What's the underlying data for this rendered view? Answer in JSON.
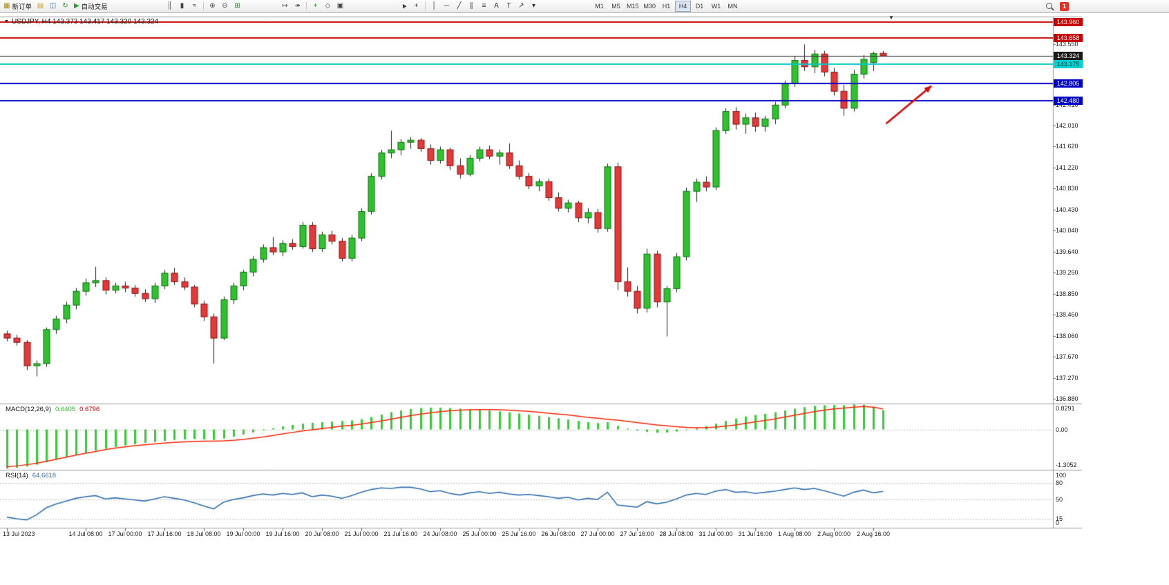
{
  "toolbar": {
    "timeframes": [
      "M1",
      "M5",
      "M15",
      "M30",
      "H1",
      "H4",
      "D1",
      "W1",
      "MN"
    ],
    "active_timeframe": "H4",
    "groups": {
      "orders": [
        {
          "name": "new-order-button",
          "icon": "new-order-icon",
          "glyph": "▦",
          "color": "#b08a00",
          "label": "新订单"
        },
        {
          "name": "chart-window-button",
          "icon": "chart-window-icon",
          "glyph": "▤",
          "color": "#caa61a"
        },
        {
          "name": "profiles-button",
          "icon": "profiles-icon",
          "glyph": "◫",
          "color": "#3a6ea5"
        },
        {
          "name": "refresh-button",
          "icon": "refresh-icon",
          "glyph": "↻",
          "color": "#2e9b2e"
        },
        {
          "name": "auto-trading-button",
          "icon": "auto-trading-play-icon",
          "glyph": "▶",
          "color": "#23a323",
          "label": "自动交易"
        }
      ],
      "chart_type": [
        {
          "name": "bar-chart-button",
          "icon": "bar-chart-icon",
          "glyph": "║",
          "color": "#444"
        },
        {
          "name": "candle-chart-button",
          "icon": "candlestick-icon",
          "glyph": "▮",
          "color": "#444"
        },
        {
          "name": "line-chart-button",
          "icon": "line-chart-icon",
          "glyph": "≈",
          "color": "#444"
        },
        {
          "type": "sep"
        },
        {
          "name": "zoom-in-button",
          "icon": "zoom-in-icon",
          "glyph": "⊕",
          "color": "#444"
        },
        {
          "name": "zoom-out-button",
          "icon": "zoom-out-icon",
          "glyph": "⊖",
          "color": "#444"
        },
        {
          "name": "tile-windows-button",
          "icon": "tile-windows-icon",
          "glyph": "⊞",
          "color": "#2e7d32"
        }
      ],
      "layout": [
        {
          "name": "auto-scroll-button",
          "icon": "auto-scroll-icon",
          "glyph": "↦",
          "color": "#444"
        },
        {
          "name": "chart-shift-button",
          "icon": "chart-shift-icon",
          "glyph": "↠",
          "color": "#444"
        },
        {
          "type": "sep"
        },
        {
          "name": "indicators-button",
          "icon": "add-indicator-icon",
          "glyph": "+",
          "color": "#1e8f1e"
        },
        {
          "name": "periods-button",
          "icon": "periods-icon",
          "glyph": "◇",
          "color": "#444"
        },
        {
          "name": "templates-button",
          "icon": "template-icon",
          "glyph": "▣",
          "color": "#444"
        }
      ],
      "tools": [
        {
          "name": "cursor-button",
          "icon": "cursor-icon",
          "glyph": "▲",
          "glyph_class": "rot-cursor",
          "color": "#333"
        },
        {
          "name": "crosshair-button",
          "icon": "crosshair-icon",
          "glyph": "+",
          "color": "#333"
        },
        {
          "type": "sep"
        },
        {
          "name": "vertical-line-button",
          "icon": "vertical-line-icon",
          "glyph": "│",
          "color": "#333"
        },
        {
          "name": "horizontal-line-button",
          "icon": "horizontal-line-icon",
          "glyph": "─",
          "color": "#333"
        },
        {
          "name": "trendline-button",
          "icon": "trendline-icon",
          "glyph": "╱",
          "color": "#333"
        },
        {
          "name": "channel-button",
          "icon": "channel-icon",
          "glyph": "∥",
          "color": "#333"
        },
        {
          "name": "fibonacci-button",
          "icon": "fibonacci-icon",
          "glyph": "≡",
          "color": "#333"
        },
        {
          "name": "text-button",
          "icon": "text-icon",
          "glyph": "A",
          "color": "#333"
        },
        {
          "name": "text-label-button",
          "icon": "text-label-icon",
          "glyph": "T",
          "color": "#333"
        },
        {
          "name": "arrows-button",
          "icon": "arrow-objects-icon",
          "glyph": "↗",
          "color": "#333"
        },
        {
          "name": "objects-dropdown",
          "icon": "dropdown-caret-icon",
          "glyph": "▾",
          "color": "#333"
        }
      ],
      "right": [
        {
          "type": "search",
          "name": "search-button"
        },
        {
          "type": "badge",
          "name": "notification-badge",
          "label": "1"
        }
      ]
    }
  },
  "chart": {
    "title": "USDJPY, H4 143.373 143.417 143.320 143.324",
    "collapse_icon": "▼",
    "shift_marker": "▼",
    "price_axis": {
      "ticks": [
        "143.550",
        "142.410",
        "142.010",
        "141.620",
        "141.220",
        "140.830",
        "140.430",
        "140.040",
        "139.640",
        "139.250",
        "138.850",
        "138.460",
        "138.060",
        "137.670",
        "137.270",
        "136.880"
      ]
    },
    "time_axis": {
      "labels": [
        "13 Jul 2023",
        "14 Jul 08:00",
        "17 Jul 00:00",
        "17 Jul 16:00",
        "18 Jul 08:00",
        "19 Jul 00:00",
        "19 Jul 16:00",
        "20 Jul 08:00",
        "21 Jul 00:00",
        "21 Jul 16:00",
        "24 Jul 08:00",
        "25 Jul 00:00",
        "25 Jul 16:00",
        "26 Jul 08:00",
        "27 Jul 00:00",
        "27 Jul 16:00",
        "28 Jul 08:00",
        "31 Jul 00:00",
        "31 Jul 16:00",
        "1 Aug 08:00",
        "2 Aug 00:00",
        "2 Aug 16:00"
      ],
      "bars": [
        0,
        8,
        12,
        16,
        20,
        24,
        28,
        32,
        36,
        40,
        44,
        48,
        52,
        56,
        60,
        64,
        68,
        72,
        76,
        80,
        84,
        88
      ]
    }
  },
  "macd": {
    "name": "MACD(12,26,9)",
    "value_main": "0.6405",
    "value_signal": "0.6796",
    "scale": [
      {
        "label": "0.8291",
        "value": 0.8291
      },
      {
        "label": "0.00",
        "value": 0.0
      },
      {
        "label": "-1.3052",
        "value": -1.3052
      }
    ]
  },
  "rsi": {
    "name": "RSI(14)",
    "value": "64.6618",
    "scale": [
      {
        "label": "100",
        "value": 100
      },
      {
        "label": "80",
        "value": 80
      },
      {
        "label": "50",
        "value": 50
      },
      {
        "label": "15",
        "value": 15
      },
      {
        "label": "0",
        "value": 0
      }
    ]
  },
  "chart_data": {
    "type": "candlestick+indicators",
    "symbol": "USDJPY",
    "timeframe": "H4",
    "price_range": [
      136.88,
      143.96
    ],
    "current": {
      "open": "143.373",
      "high": "143.417",
      "low": "143.320",
      "close": "143.324"
    },
    "colors": {
      "up": "#2fc12f",
      "up_border": "#0c700c",
      "down": "#e23939",
      "down_border": "#8a1010",
      "wick": "#1b1b1b",
      "macd_hist": "#33cc33",
      "macd_signal": "#ff2200",
      "rsi_line": "#2f6fb0",
      "annotation": "#dd0000"
    },
    "candles_ohlc": [
      [
        138.1,
        138.16,
        137.96,
        138.02
      ],
      [
        138.02,
        138.08,
        137.88,
        137.94
      ],
      [
        137.94,
        137.98,
        137.42,
        137.5
      ],
      [
        137.5,
        137.6,
        137.3,
        137.54
      ],
      [
        137.54,
        138.22,
        137.48,
        138.18
      ],
      [
        138.18,
        138.44,
        138.1,
        138.38
      ],
      [
        138.38,
        138.7,
        138.3,
        138.64
      ],
      [
        138.64,
        138.96,
        138.56,
        138.9
      ],
      [
        138.9,
        139.14,
        138.82,
        139.06
      ],
      [
        139.06,
        139.36,
        138.98,
        139.1
      ],
      [
        139.1,
        139.16,
        138.84,
        138.92
      ],
      [
        138.92,
        139.06,
        138.86,
        139.0
      ],
      [
        139.0,
        139.08,
        138.88,
        138.96
      ],
      [
        138.96,
        139.02,
        138.8,
        138.86
      ],
      [
        138.86,
        138.94,
        138.7,
        138.76
      ],
      [
        138.76,
        139.06,
        138.68,
        139.0
      ],
      [
        139.0,
        139.3,
        138.94,
        139.24
      ],
      [
        139.24,
        139.34,
        139.02,
        139.08
      ],
      [
        139.08,
        139.16,
        138.92,
        138.98
      ],
      [
        138.98,
        139.02,
        138.6,
        138.66
      ],
      [
        138.66,
        138.72,
        138.34,
        138.42
      ],
      [
        138.42,
        138.48,
        137.54,
        138.02
      ],
      [
        138.02,
        138.8,
        137.98,
        138.74
      ],
      [
        138.74,
        139.06,
        138.66,
        139.0
      ],
      [
        139.0,
        139.3,
        138.92,
        139.26
      ],
      [
        139.26,
        139.56,
        139.18,
        139.5
      ],
      [
        139.5,
        139.78,
        139.44,
        139.72
      ],
      [
        139.72,
        139.92,
        139.58,
        139.64
      ],
      [
        139.64,
        139.86,
        139.56,
        139.8
      ],
      [
        139.8,
        139.88,
        139.68,
        139.74
      ],
      [
        139.74,
        140.2,
        139.7,
        140.14
      ],
      [
        140.14,
        140.2,
        139.64,
        139.7
      ],
      [
        139.7,
        140.02,
        139.64,
        139.96
      ],
      [
        139.96,
        140.04,
        139.78,
        139.84
      ],
      [
        139.84,
        139.9,
        139.46,
        139.52
      ],
      [
        139.52,
        139.96,
        139.46,
        139.9
      ],
      [
        139.9,
        140.46,
        139.84,
        140.4
      ],
      [
        140.4,
        141.12,
        140.34,
        141.06
      ],
      [
        141.06,
        141.56,
        141.0,
        141.5
      ],
      [
        141.5,
        141.92,
        141.4,
        141.56
      ],
      [
        141.56,
        141.76,
        141.46,
        141.7
      ],
      [
        141.7,
        141.8,
        141.58,
        141.74
      ],
      [
        141.74,
        141.78,
        141.52,
        141.58
      ],
      [
        141.58,
        141.66,
        141.28,
        141.36
      ],
      [
        141.36,
        141.62,
        141.3,
        141.56
      ],
      [
        141.56,
        141.6,
        141.18,
        141.26
      ],
      [
        141.26,
        141.4,
        141.02,
        141.1
      ],
      [
        141.1,
        141.46,
        141.06,
        141.4
      ],
      [
        141.4,
        141.62,
        141.34,
        141.56
      ],
      [
        141.56,
        141.64,
        141.38,
        141.44
      ],
      [
        141.44,
        141.56,
        141.28,
        141.5
      ],
      [
        141.5,
        141.68,
        141.2,
        141.26
      ],
      [
        141.26,
        141.36,
        141.0,
        141.06
      ],
      [
        141.06,
        141.12,
        140.82,
        140.88
      ],
      [
        140.88,
        141.02,
        140.78,
        140.96
      ],
      [
        140.96,
        141.02,
        140.6,
        140.66
      ],
      [
        140.66,
        140.76,
        140.4,
        140.46
      ],
      [
        140.46,
        140.62,
        140.38,
        140.56
      ],
      [
        140.56,
        140.6,
        140.2,
        140.28
      ],
      [
        140.28,
        140.46,
        140.18,
        140.38
      ],
      [
        140.38,
        140.45,
        140.0,
        140.08
      ],
      [
        140.08,
        141.3,
        140.02,
        141.24
      ],
      [
        141.24,
        141.32,
        138.92,
        139.08
      ],
      [
        139.08,
        139.35,
        138.8,
        138.9
      ],
      [
        138.9,
        139.0,
        138.48,
        138.58
      ],
      [
        138.58,
        139.7,
        138.5,
        139.6
      ],
      [
        139.6,
        139.66,
        138.6,
        138.7
      ],
      [
        138.7,
        139.0,
        138.05,
        138.95
      ],
      [
        138.95,
        139.62,
        138.88,
        139.55
      ],
      [
        139.55,
        140.85,
        139.48,
        140.78
      ],
      [
        140.78,
        141.02,
        140.58,
        140.95
      ],
      [
        140.95,
        141.06,
        140.78,
        140.86
      ],
      [
        140.86,
        141.98,
        140.8,
        141.92
      ],
      [
        141.92,
        142.34,
        141.86,
        142.28
      ],
      [
        142.28,
        142.36,
        141.94,
        142.04
      ],
      [
        142.04,
        142.24,
        141.86,
        142.16
      ],
      [
        142.16,
        142.26,
        141.9,
        142.0
      ],
      [
        142.0,
        142.2,
        141.9,
        142.14
      ],
      [
        142.14,
        142.46,
        142.04,
        142.4
      ],
      [
        142.4,
        142.86,
        142.34,
        142.8
      ],
      [
        142.8,
        143.32,
        142.74,
        143.24
      ],
      [
        143.24,
        143.54,
        143.04,
        143.12
      ],
      [
        143.12,
        143.44,
        143.0,
        143.36
      ],
      [
        143.36,
        143.42,
        142.94,
        143.02
      ],
      [
        143.02,
        143.1,
        142.58,
        142.66
      ],
      [
        142.66,
        142.78,
        142.2,
        142.34
      ],
      [
        142.34,
        143.06,
        142.28,
        142.98
      ],
      [
        142.98,
        143.34,
        142.9,
        143.26
      ],
      [
        143.2,
        143.4,
        143.04,
        143.37
      ],
      [
        143.373,
        143.417,
        143.32,
        143.324
      ]
    ],
    "macd": {
      "range": [
        -1.3052,
        0.8291
      ],
      "histogram": [
        -1.3,
        -1.27,
        -1.23,
        -1.17,
        -1.09,
        -1.01,
        -0.93,
        -0.85,
        -0.77,
        -0.7,
        -0.64,
        -0.58,
        -0.53,
        -0.49,
        -0.45,
        -0.42,
        -0.38,
        -0.35,
        -0.33,
        -0.32,
        -0.33,
        -0.35,
        -0.3,
        -0.24,
        -0.17,
        -0.1,
        -0.03,
        0.04,
        0.1,
        0.15,
        0.19,
        0.22,
        0.24,
        0.26,
        0.28,
        0.3,
        0.34,
        0.41,
        0.49,
        0.57,
        0.63,
        0.68,
        0.71,
        0.72,
        0.72,
        0.71,
        0.69,
        0.67,
        0.65,
        0.63,
        0.6,
        0.57,
        0.53,
        0.49,
        0.45,
        0.41,
        0.37,
        0.33,
        0.28,
        0.24,
        0.21,
        0.24,
        0.12,
        0.03,
        -0.04,
        -0.08,
        -0.11,
        -0.1,
        -0.07,
        -0.02,
        0.05,
        0.11,
        0.19,
        0.28,
        0.36,
        0.43,
        0.48,
        0.52,
        0.57,
        0.63,
        0.69,
        0.74,
        0.78,
        0.8,
        0.81,
        0.8,
        0.8291,
        0.82,
        0.75,
        0.6405
      ],
      "signal": [
        -1.24,
        -1.21,
        -1.17,
        -1.12,
        -1.06,
        -0.99,
        -0.92,
        -0.85,
        -0.79,
        -0.73,
        -0.67,
        -0.62,
        -0.58,
        -0.54,
        -0.51,
        -0.48,
        -0.45,
        -0.43,
        -0.41,
        -0.4,
        -0.39,
        -0.39,
        -0.38,
        -0.36,
        -0.33,
        -0.29,
        -0.25,
        -0.2,
        -0.15,
        -0.1,
        -0.05,
        -0.01,
        0.03,
        0.07,
        0.11,
        0.14,
        0.18,
        0.23,
        0.28,
        0.34,
        0.4,
        0.46,
        0.51,
        0.55,
        0.59,
        0.62,
        0.64,
        0.65,
        0.66,
        0.66,
        0.65,
        0.64,
        0.62,
        0.6,
        0.57,
        0.54,
        0.51,
        0.48,
        0.44,
        0.4,
        0.37,
        0.34,
        0.31,
        0.27,
        0.23,
        0.19,
        0.15,
        0.12,
        0.09,
        0.07,
        0.06,
        0.06,
        0.08,
        0.11,
        0.15,
        0.2,
        0.25,
        0.3,
        0.35,
        0.41,
        0.47,
        0.53,
        0.59,
        0.64,
        0.68,
        0.71,
        0.74,
        0.76,
        0.74,
        0.6796
      ]
    },
    "rsi": {
      "range": [
        0,
        100
      ],
      "levels": [
        80,
        50,
        15
      ],
      "values": [
        18,
        15,
        13,
        22,
        35,
        42,
        47,
        52,
        55,
        57,
        51,
        53,
        51,
        49,
        47,
        51,
        55,
        52,
        49,
        44,
        38,
        33,
        45,
        50,
        53,
        57,
        60,
        58,
        61,
        59,
        62,
        55,
        58,
        56,
        52,
        57,
        63,
        68,
        71,
        70,
        72,
        72,
        69,
        64,
        66,
        61,
        58,
        62,
        64,
        61,
        63,
        60,
        58,
        59,
        57,
        55,
        52,
        54,
        49,
        52,
        50,
        63,
        40,
        38,
        36,
        46,
        42,
        45,
        51,
        58,
        61,
        59,
        65,
        68,
        63,
        64,
        61,
        63,
        65,
        68,
        71,
        68,
        70,
        66,
        61,
        56,
        63,
        67,
        62,
        64.66
      ]
    },
    "hlines": [
      {
        "price": 143.96,
        "label": "143.960",
        "color": "#c80000",
        "width": 2,
        "label_bg": "#c80000",
        "label_fg": "#ffffff"
      },
      {
        "price": 143.658,
        "label": "143.658",
        "color": "#c80000",
        "width": 2,
        "label_bg": "#c80000",
        "label_fg": "#ffffff"
      },
      {
        "price": 143.324,
        "label": "143.324",
        "color": "#2a2a2a",
        "width": 1,
        "label_bg": "#1a1a1a",
        "label_fg": "#ffffff"
      },
      {
        "price": 143.175,
        "label": "143.175",
        "color": "#00c8c8",
        "width": 2,
        "label_bg": "#00d2d2",
        "label_fg": "#00333a"
      },
      {
        "price": 142.805,
        "label": "142.805",
        "color": "#0000c8",
        "width": 2,
        "label_bg": "#0000c8",
        "label_fg": "#ffffff"
      },
      {
        "price": 142.48,
        "label": "142.480",
        "color": "#0000c8",
        "width": 2,
        "label_bg": "#0000c8",
        "label_fg": "#ffffff"
      }
    ],
    "annotations": [
      {
        "type": "arrow",
        "color": "#dd0000",
        "from_bar": 89.3,
        "from_price": 142.05,
        "to_bar": 93.9,
        "to_price": 142.76
      }
    ]
  }
}
